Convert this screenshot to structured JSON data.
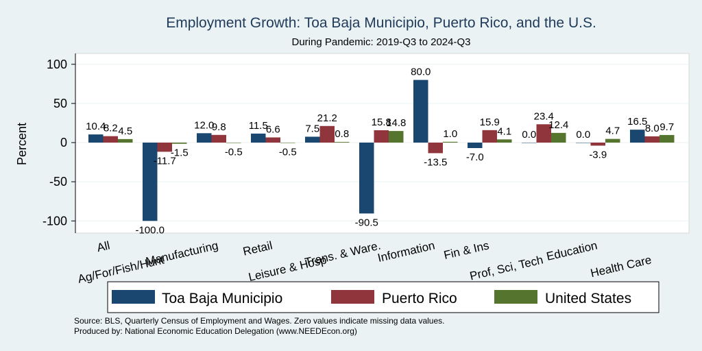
{
  "chart_data": {
    "type": "bar",
    "title": "Employment Growth: Toa Baja Municipio, Puerto Rico, and the U.S.",
    "subtitle": "During Pandemic: 2019-Q3 to 2024-Q3",
    "ylabel": "Percent",
    "xlabel": "",
    "ylim": [
      -120,
      115
    ],
    "yticks": [
      100,
      50,
      0,
      -50,
      -100
    ],
    "grid": true,
    "legend_position": "bottom",
    "categories": [
      "All",
      "Ag/For/Fish/Hunt",
      "Manufacturing",
      "Retail",
      "Leisure & Hosp",
      "Trans. & Ware.",
      "Information",
      "Fin & Ins",
      "Prof, Sci, Tech",
      "Education",
      "Health Care"
    ],
    "category_rows": [
      0,
      1,
      0,
      0,
      1,
      0,
      0,
      0,
      1,
      0,
      1
    ],
    "series": [
      {
        "name": "Toa Baja Municipio",
        "color": "#1a476f",
        "values": [
          10.4,
          -100.0,
          12.0,
          11.5,
          7.5,
          -90.5,
          80.0,
          -7.0,
          0.0,
          0.0,
          16.5
        ]
      },
      {
        "name": "Puerto Rico",
        "color": "#90353b",
        "values": [
          8.2,
          -11.7,
          9.8,
          6.6,
          21.2,
          15.8,
          -13.5,
          15.9,
          23.4,
          -3.9,
          8.0
        ]
      },
      {
        "name": "United States",
        "color": "#55752f",
        "values": [
          4.5,
          -1.5,
          -0.5,
          -0.5,
          0.8,
          14.8,
          1.0,
          4.1,
          12.4,
          4.7,
          9.7
        ]
      }
    ],
    "notes": [
      "Source: BLS, Quarterly Census of Employment and Wages. Zero values indicate missing data values.",
      "Produced by: National Economic Education Delegation (www.NEEDEcon.org)"
    ]
  }
}
